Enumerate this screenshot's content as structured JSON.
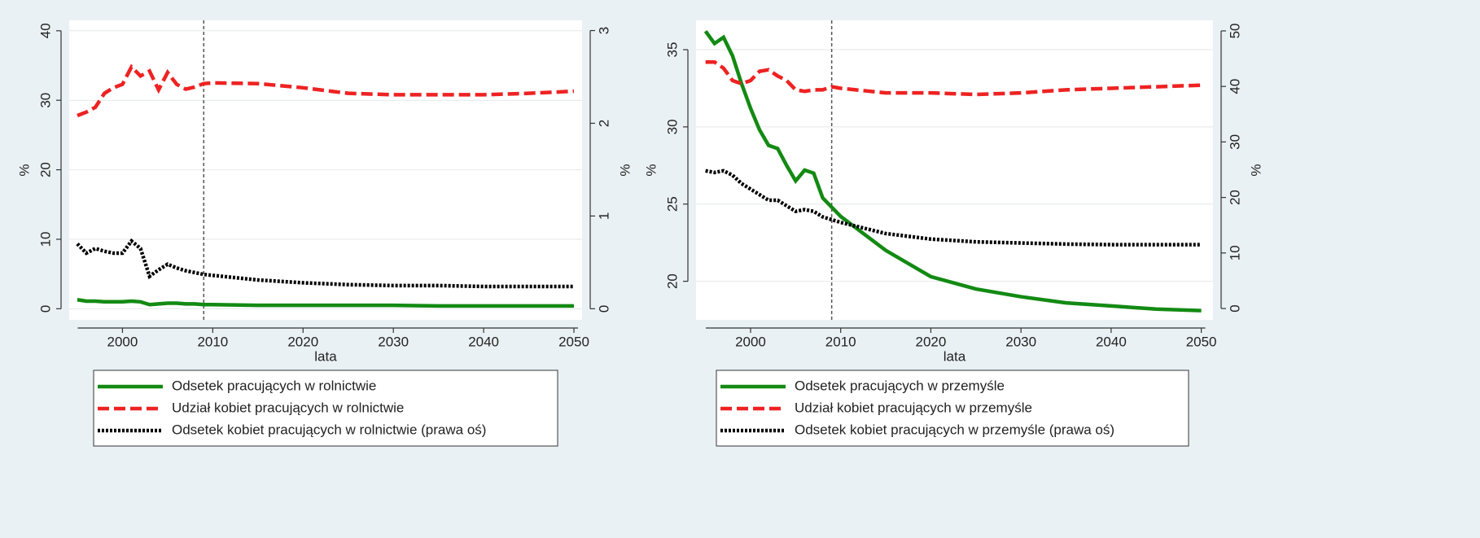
{
  "chart_data": [
    {
      "type": "line",
      "xlabel": "lata",
      "ylabel": "%",
      "y2label": "%",
      "x": [
        1995,
        1996,
        1997,
        1998,
        1999,
        2000,
        2001,
        2002,
        2003,
        2004,
        2005,
        2006,
        2007,
        2008,
        2009,
        2010,
        2015,
        2020,
        2025,
        2030,
        2035,
        2040,
        2045,
        2050
      ],
      "xlim": [
        1994.1,
        2050.9
      ],
      "xticks": [
        2000,
        2010,
        2020,
        2030,
        2040,
        2050
      ],
      "ylim": [
        -1.6,
        41.5
      ],
      "yticks": [
        0,
        10,
        20,
        30,
        40
      ],
      "y2lim": [
        -0.12,
        3.11
      ],
      "y2ticks": [
        0,
        1,
        2,
        3
      ],
      "vline": 2009,
      "grid": true,
      "series": [
        {
          "name": "Odsetek pracujących w rolnictwie",
          "color": "#138a13",
          "style": "solid",
          "values": [
            1.3,
            1.1,
            1.1,
            1.0,
            1.0,
            1.0,
            1.1,
            1.0,
            0.6,
            0.7,
            0.8,
            0.8,
            0.7,
            0.7,
            0.6,
            0.6,
            0.5,
            0.5,
            0.5,
            0.5,
            0.4,
            0.4,
            0.4,
            0.4
          ]
        },
        {
          "name": "Udział kobiet pracujących w rolnictwie",
          "color": "#ee2222",
          "style": "dashed",
          "values": [
            27.8,
            28.3,
            29.0,
            31.0,
            31.8,
            32.3,
            34.8,
            33.5,
            34.2,
            31.5,
            34.0,
            32.3,
            31.6,
            31.9,
            32.4,
            32.5,
            32.4,
            31.8,
            31.0,
            30.8,
            30.8,
            30.8,
            31.0,
            31.3
          ]
        },
        {
          "name": "Odsetek kobiet pracujących w rolnictwie (prawa oś)",
          "color": "#000000",
          "style": "dotted",
          "axis": "y2",
          "values": [
            0.7,
            0.6,
            0.65,
            0.62,
            0.6,
            0.6,
            0.73,
            0.65,
            0.35,
            0.42,
            0.48,
            0.44,
            0.41,
            0.39,
            0.37,
            0.36,
            0.31,
            0.28,
            0.26,
            0.25,
            0.25,
            0.24,
            0.24,
            0.24
          ]
        }
      ]
    },
    {
      "type": "line",
      "xlabel": "lata",
      "ylabel": "%",
      "y2label": "%",
      "x": [
        1995,
        1996,
        1997,
        1998,
        1999,
        2000,
        2001,
        2002,
        2003,
        2004,
        2005,
        2006,
        2007,
        2008,
        2009,
        2010,
        2015,
        2020,
        2025,
        2030,
        2035,
        2040,
        2045,
        2050
      ],
      "xlim": [
        1993.95,
        2051.3
      ],
      "xticks": [
        2000,
        2010,
        2020,
        2030,
        2040,
        2050
      ],
      "ylim": [
        17.5,
        36.9
      ],
      "yticks": [
        20,
        25,
        30,
        35
      ],
      "y2lim": [
        -2.05,
        51.9
      ],
      "y2ticks": [
        0,
        10,
        20,
        30,
        40,
        50
      ],
      "vline": 2009,
      "grid": true,
      "series": [
        {
          "name": "Odsetek pracujących w przemyśle",
          "color": "#138a13",
          "style": "solid",
          "values": [
            36.2,
            35.4,
            35.8,
            34.6,
            32.8,
            31.2,
            29.8,
            28.8,
            28.6,
            27.5,
            26.5,
            27.2,
            27.0,
            25.4,
            24.8,
            24.2,
            22.0,
            20.3,
            19.5,
            19.0,
            18.6,
            18.4,
            18.2,
            18.1
          ]
        },
        {
          "name": "Udział kobiet pracujących w przemyśle",
          "color": "#ee2222",
          "style": "dashed",
          "values": [
            34.2,
            34.2,
            33.8,
            33.0,
            32.8,
            33.0,
            33.6,
            33.7,
            33.3,
            33.0,
            32.4,
            32.3,
            32.4,
            32.4,
            32.6,
            32.5,
            32.2,
            32.2,
            32.1,
            32.2,
            32.4,
            32.5,
            32.6,
            32.7
          ]
        },
        {
          "name": "Odsetek kobiet pracujących w przemyśle (prawa oś)",
          "color": "#000000",
          "style": "dotted",
          "axis": "y2",
          "values": [
            24.8,
            24.5,
            24.8,
            24.0,
            22.5,
            21.5,
            20.5,
            19.5,
            19.5,
            18.5,
            17.5,
            17.8,
            17.5,
            16.5,
            16.0,
            15.5,
            13.5,
            12.5,
            12.0,
            11.8,
            11.6,
            11.5,
            11.5,
            11.5
          ]
        }
      ]
    }
  ]
}
